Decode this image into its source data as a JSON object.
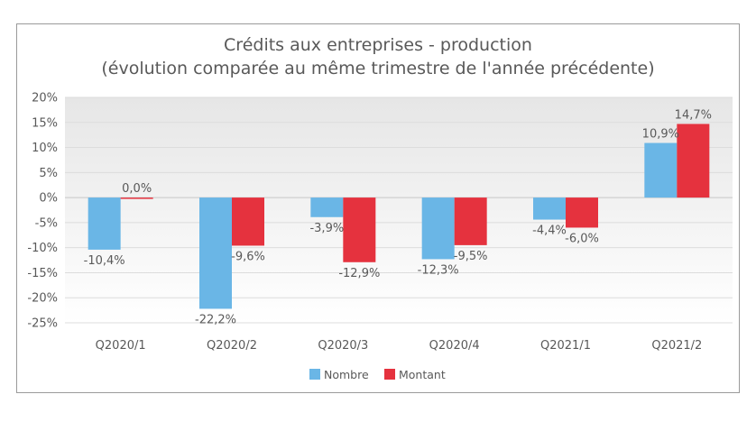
{
  "chart_data": {
    "type": "bar",
    "title": "Crédits aux entreprises - production",
    "subtitle": "(évolution comparée au même trimestre de l'année précédente)",
    "categories": [
      "Q2020/1",
      "Q2020/2",
      "Q2020/3",
      "Q2020/4",
      "Q2021/1",
      "Q2021/2"
    ],
    "series": [
      {
        "name": "Nombre",
        "color": "#6ab6e6",
        "values": [
          -10.4,
          -22.2,
          -3.9,
          -12.3,
          -4.4,
          10.9
        ],
        "labels": [
          "-10,4%",
          "-22,2%",
          "-3,9%",
          "-12,3%",
          "-4,4%",
          "10,9%"
        ]
      },
      {
        "name": "Montant",
        "color": "#e5323e",
        "values": [
          0.0,
          -9.6,
          -12.9,
          -9.5,
          -6.0,
          14.7
        ],
        "labels": [
          "0,0%",
          "-9,6%",
          "-12,9%",
          "-9,5%",
          "-6,0%",
          "14,7%"
        ]
      }
    ],
    "ylim": [
      -25,
      20
    ],
    "yticks": [
      20,
      15,
      10,
      5,
      0,
      -5,
      -10,
      -15,
      -20,
      -25
    ],
    "ytick_labels": [
      "20%",
      "15%",
      "10%",
      "5%",
      "0%",
      "-5%",
      "-10%",
      "-15%",
      "-20%",
      "-25%"
    ],
    "grid": true,
    "legend": "bottom"
  }
}
